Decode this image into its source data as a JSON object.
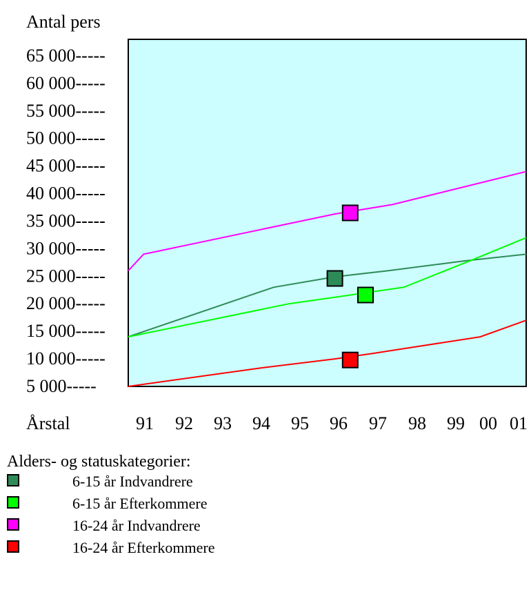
{
  "chart_data": {
    "type": "line",
    "ylabel": "Antal pers",
    "xlabel": "Årstal",
    "x_labels": [
      "91",
      "92",
      "93",
      "94",
      "95",
      "96",
      "97",
      "98",
      "99",
      "00",
      "01"
    ],
    "y_ticks": [
      "5 000-----",
      "10 000-----",
      "15 000-----",
      "20 000-----",
      "25 000-----",
      "30 000-----",
      "35 000-----",
      "40 000-----",
      "45 000-----",
      "50 000-----",
      "55 000-----",
      "60 000-----",
      "65 000-----"
    ],
    "y_tick_values": [
      5000,
      10000,
      15000,
      20000,
      25000,
      30000,
      35000,
      40000,
      45000,
      50000,
      55000,
      60000,
      65000
    ],
    "xlim": [
      90.6,
      101
    ],
    "ylim": [
      5000,
      68000
    ],
    "plot_background": "#ccfdff",
    "series": [
      {
        "name": "6-15 år Indvandrere",
        "color": "#2e8b57",
        "points": [
          [
            90.6,
            14000
          ],
          [
            94.4,
            23000
          ],
          [
            96,
            24900
          ],
          [
            97.4,
            26000
          ],
          [
            99.4,
            27800
          ],
          [
            101,
            29000
          ]
        ],
        "marker_x": 96.0,
        "marker_y": 24600
      },
      {
        "name": "6-15 år Efterkommere",
        "color": "#00ff00",
        "points": [
          [
            90.6,
            14000
          ],
          [
            94.8,
            20000
          ],
          [
            96,
            21200
          ],
          [
            97.8,
            23000
          ],
          [
            99.6,
            28000
          ],
          [
            101,
            32000
          ]
        ],
        "marker_x": 96.8,
        "marker_y": 21600
      },
      {
        "name": "16-24 år Indvandrere",
        "color": "#ff00ff",
        "points": [
          [
            90.6,
            26000
          ],
          [
            91,
            29000
          ],
          [
            96,
            36300
          ],
          [
            97.5,
            38000
          ],
          [
            101,
            44000
          ]
        ],
        "marker_x": 96.4,
        "marker_y": 36500
      },
      {
        "name": "16-24 år Efterkommere",
        "color": "#ff0000",
        "points": [
          [
            90.6,
            5000
          ],
          [
            94,
            8300
          ],
          [
            96,
            10000
          ],
          [
            97,
            11000
          ],
          [
            99.8,
            14000
          ],
          [
            101,
            17000
          ]
        ],
        "marker_x": 96.4,
        "marker_y": 9800
      }
    ],
    "legend_title": "Alders- og statuskategorier:"
  }
}
